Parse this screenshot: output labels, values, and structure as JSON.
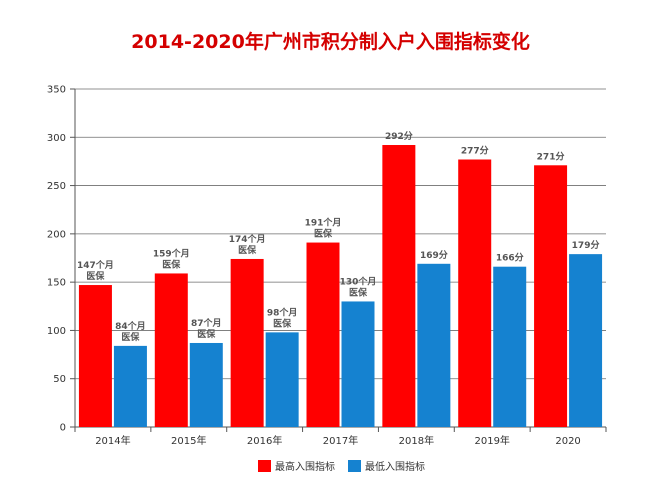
{
  "chart_data": {
    "type": "bar",
    "title": "2014-2020年广州市积分制入户入围指标变化",
    "xlabel": "",
    "ylabel": "",
    "categories": [
      "2014年",
      "2015年",
      "2016年",
      "2017年",
      "2018年",
      "2019年",
      "2020"
    ],
    "ylim": [
      0,
      350
    ],
    "yticks": [
      0,
      50,
      100,
      150,
      200,
      250,
      300,
      350
    ],
    "grid": true,
    "legend_position": "bottom",
    "series": [
      {
        "name": "最高入围指标",
        "color": "#ff0000",
        "values": [
          147,
          159,
          174,
          191,
          292,
          277,
          271
        ],
        "data_labels": [
          [
            "147个月",
            "医保"
          ],
          [
            "159个月",
            "医保"
          ],
          [
            "174个月",
            "医保"
          ],
          [
            "191个月",
            "医保"
          ],
          [
            "292分"
          ],
          [
            "277分"
          ],
          [
            "271分"
          ]
        ]
      },
      {
        "name": "最低入围指标",
        "color": "#1582d0",
        "values": [
          84,
          87,
          98,
          130,
          169,
          166,
          179
        ],
        "data_labels": [
          [
            "84个月",
            "医保"
          ],
          [
            "87个月",
            "医保"
          ],
          [
            "98个月",
            "医保"
          ],
          [
            "130个月",
            "医保"
          ],
          [
            "169分"
          ],
          [
            "166分"
          ],
          [
            "179分"
          ]
        ]
      }
    ]
  }
}
